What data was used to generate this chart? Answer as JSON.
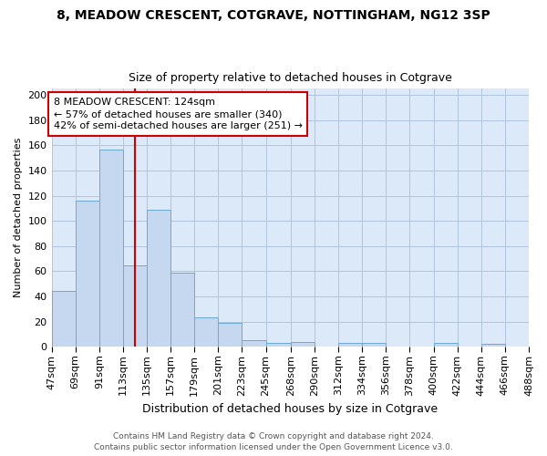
{
  "title1": "8, MEADOW CRESCENT, COTGRAVE, NOTTINGHAM, NG12 3SP",
  "title2": "Size of property relative to detached houses in Cotgrave",
  "xlabel": "Distribution of detached houses by size in Cotgrave",
  "ylabel": "Number of detached properties",
  "footer1": "Contains HM Land Registry data © Crown copyright and database right 2024.",
  "footer2": "Contains public sector information licensed under the Open Government Licence v3.0.",
  "bins": [
    47,
    69,
    91,
    113,
    135,
    157,
    179,
    201,
    223,
    245,
    268,
    290,
    312,
    334,
    356,
    378,
    400,
    422,
    444,
    466,
    488
  ],
  "bar_heights": [
    44,
    116,
    157,
    65,
    109,
    59,
    23,
    19,
    5,
    3,
    4,
    0,
    3,
    3,
    0,
    0,
    3,
    0,
    2,
    0
  ],
  "bar_color": "#c5d8f0",
  "bar_edge_color": "#6aaad4",
  "grid_color": "#b0c4de",
  "bg_color": "#dce9f8",
  "property_size": 124,
  "annotation_text": "8 MEADOW CRESCENT: 124sqm\n← 57% of detached houses are smaller (340)\n42% of semi-detached houses are larger (251) →",
  "vline_color": "#cc0000",
  "annotation_box_color": "#cc0000",
  "ylim": [
    0,
    205
  ],
  "tick_labels": [
    "47sqm",
    "69sqm",
    "91sqm",
    "113sqm",
    "135sqm",
    "157sqm",
    "179sqm",
    "201sqm",
    "223sqm",
    "245sqm",
    "268sqm",
    "290sqm",
    "312sqm",
    "334sqm",
    "356sqm",
    "378sqm",
    "400sqm",
    "422sqm",
    "444sqm",
    "466sqm",
    "488sqm"
  ],
  "title1_fontsize": 10,
  "title2_fontsize": 9,
  "xlabel_fontsize": 9,
  "ylabel_fontsize": 8,
  "tick_fontsize": 8,
  "footer_fontsize": 6.5,
  "annotation_fontsize": 8
}
